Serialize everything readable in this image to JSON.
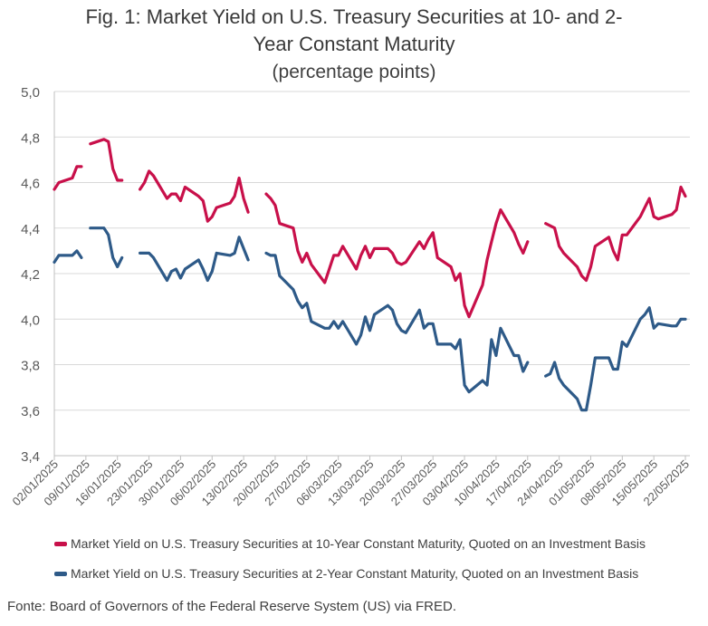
{
  "title": {
    "line1": "Fig. 1: Market Yield on U.S. Treasury Securities at 10- and 2-",
    "line2": "Year Constant Maturity",
    "subtitle": "(percentage points)"
  },
  "legend": [
    {
      "label": "Market Yield on U.S. Treasury Securities at 10-Year Constant Maturity, Quoted on an Investment Basis",
      "color": "#c8104a"
    },
    {
      "label": "Market Yield on U.S. Treasury Securities at 2-Year Constant Maturity, Quoted on an Investment Basis",
      "color": "#2e5a88"
    }
  ],
  "source": "Fonte: Board of Governors of the Federal Reserve System (US) via FRED.",
  "chart_data": {
    "type": "line",
    "title": "Fig. 1: Market Yield on U.S. Treasury Securities at 10- and 2-Year Constant Maturity",
    "subtitle": "(percentage points)",
    "ylim": [
      3.4,
      5.0
    ],
    "yticks": [
      "3,4",
      "3,6",
      "3,8",
      "4,0",
      "4,2",
      "4,4",
      "4,6",
      "4,8",
      "5,0"
    ],
    "ytick_values": [
      3.4,
      3.6,
      3.8,
      4.0,
      4.2,
      4.4,
      4.6,
      4.8,
      5.0
    ],
    "xtick_labels": [
      "02/01/2025",
      "09/01/2025",
      "16/01/2025",
      "23/01/2025",
      "30/01/2025",
      "06/02/2025",
      "13/02/2025",
      "20/02/2025",
      "27/02/2025",
      "06/03/2025",
      "13/03/2025",
      "20/03/2025",
      "27/03/2025",
      "03/04/2025",
      "10/04/2025",
      "17/04/2025",
      "24/04/2025",
      "01/05/2025",
      "08/05/2025",
      "15/05/2025",
      "22/05/2025"
    ],
    "x_start": "2025-01-02",
    "x_end": "2025-05-23",
    "grid": "horizontal",
    "series": [
      {
        "name": "Market Yield on U.S. Treasury Securities at 10-Year Constant Maturity, Quoted on an Investment Basis",
        "color": "#c8104a",
        "points": [
          [
            "2025-01-02",
            4.57
          ],
          [
            "2025-01-03",
            4.6
          ],
          [
            "2025-01-06",
            4.62
          ],
          [
            "2025-01-07",
            4.67
          ],
          [
            "2025-01-08",
            4.67
          ],
          [
            "2025-01-09",
            null
          ],
          [
            "2025-01-10",
            4.77
          ],
          [
            "2025-01-13",
            4.79
          ],
          [
            "2025-01-14",
            4.78
          ],
          [
            "2025-01-15",
            4.66
          ],
          [
            "2025-01-16",
            4.61
          ],
          [
            "2025-01-17",
            4.61
          ],
          [
            "2025-01-20",
            null
          ],
          [
            "2025-01-21",
            4.57
          ],
          [
            "2025-01-22",
            4.6
          ],
          [
            "2025-01-23",
            4.65
          ],
          [
            "2025-01-24",
            4.63
          ],
          [
            "2025-01-27",
            4.53
          ],
          [
            "2025-01-28",
            4.55
          ],
          [
            "2025-01-29",
            4.55
          ],
          [
            "2025-01-30",
            4.52
          ],
          [
            "2025-01-31",
            4.58
          ],
          [
            "2025-02-03",
            4.54
          ],
          [
            "2025-02-04",
            4.52
          ],
          [
            "2025-02-05",
            4.43
          ],
          [
            "2025-02-06",
            4.45
          ],
          [
            "2025-02-07",
            4.49
          ],
          [
            "2025-02-10",
            4.51
          ],
          [
            "2025-02-11",
            4.54
          ],
          [
            "2025-02-12",
            4.62
          ],
          [
            "2025-02-13",
            4.53
          ],
          [
            "2025-02-14",
            4.47
          ],
          [
            "2025-02-17",
            null
          ],
          [
            "2025-02-18",
            4.55
          ],
          [
            "2025-02-19",
            4.53
          ],
          [
            "2025-02-20",
            4.5
          ],
          [
            "2025-02-21",
            4.42
          ],
          [
            "2025-02-24",
            4.4
          ],
          [
            "2025-02-25",
            4.3
          ],
          [
            "2025-02-26",
            4.25
          ],
          [
            "2025-02-27",
            4.29
          ],
          [
            "2025-02-28",
            4.24
          ],
          [
            "2025-03-03",
            4.16
          ],
          [
            "2025-03-04",
            4.22
          ],
          [
            "2025-03-05",
            4.28
          ],
          [
            "2025-03-06",
            4.28
          ],
          [
            "2025-03-07",
            4.32
          ],
          [
            "2025-03-10",
            4.22
          ],
          [
            "2025-03-11",
            4.28
          ],
          [
            "2025-03-12",
            4.32
          ],
          [
            "2025-03-13",
            4.27
          ],
          [
            "2025-03-14",
            4.31
          ],
          [
            "2025-03-17",
            4.31
          ],
          [
            "2025-03-18",
            4.29
          ],
          [
            "2025-03-19",
            4.25
          ],
          [
            "2025-03-20",
            4.24
          ],
          [
            "2025-03-21",
            4.25
          ],
          [
            "2025-03-24",
            4.34
          ],
          [
            "2025-03-25",
            4.31
          ],
          [
            "2025-03-26",
            4.35
          ],
          [
            "2025-03-27",
            4.38
          ],
          [
            "2025-03-28",
            4.27
          ],
          [
            "2025-03-31",
            4.23
          ],
          [
            "2025-04-01",
            4.17
          ],
          [
            "2025-04-02",
            4.2
          ],
          [
            "2025-04-03",
            4.06
          ],
          [
            "2025-04-04",
            4.01
          ],
          [
            "2025-04-07",
            4.15
          ],
          [
            "2025-04-08",
            4.26
          ],
          [
            "2025-04-09",
            4.34
          ],
          [
            "2025-04-10",
            4.42
          ],
          [
            "2025-04-11",
            4.48
          ],
          [
            "2025-04-14",
            4.38
          ],
          [
            "2025-04-15",
            4.33
          ],
          [
            "2025-04-16",
            4.29
          ],
          [
            "2025-04-17",
            4.34
          ],
          [
            "2025-04-18",
            null
          ],
          [
            "2025-04-21",
            4.42
          ],
          [
            "2025-04-22",
            4.41
          ],
          [
            "2025-04-23",
            4.4
          ],
          [
            "2025-04-24",
            4.32
          ],
          [
            "2025-04-25",
            4.29
          ],
          [
            "2025-04-28",
            4.23
          ],
          [
            "2025-04-29",
            4.19
          ],
          [
            "2025-04-30",
            4.17
          ],
          [
            "2025-05-01",
            4.23
          ],
          [
            "2025-05-02",
            4.32
          ],
          [
            "2025-05-05",
            4.36
          ],
          [
            "2025-05-06",
            4.3
          ],
          [
            "2025-05-07",
            4.26
          ],
          [
            "2025-05-08",
            4.37
          ],
          [
            "2025-05-09",
            4.37
          ],
          [
            "2025-05-12",
            4.45
          ],
          [
            "2025-05-13",
            4.49
          ],
          [
            "2025-05-14",
            4.53
          ],
          [
            "2025-05-15",
            4.45
          ],
          [
            "2025-05-16",
            4.44
          ],
          [
            "2025-05-19",
            4.46
          ],
          [
            "2025-05-20",
            4.48
          ],
          [
            "2025-05-21",
            4.58
          ],
          [
            "2025-05-22",
            4.54
          ]
        ]
      },
      {
        "name": "Market Yield on U.S. Treasury Securities at 2-Year Constant Maturity, Quoted on an Investment Basis",
        "color": "#2e5a88",
        "points": [
          [
            "2025-01-02",
            4.25
          ],
          [
            "2025-01-03",
            4.28
          ],
          [
            "2025-01-06",
            4.28
          ],
          [
            "2025-01-07",
            4.3
          ],
          [
            "2025-01-08",
            4.27
          ],
          [
            "2025-01-09",
            null
          ],
          [
            "2025-01-10",
            4.4
          ],
          [
            "2025-01-13",
            4.4
          ],
          [
            "2025-01-14",
            4.37
          ],
          [
            "2025-01-15",
            4.27
          ],
          [
            "2025-01-16",
            4.23
          ],
          [
            "2025-01-17",
            4.27
          ],
          [
            "2025-01-20",
            null
          ],
          [
            "2025-01-21",
            4.29
          ],
          [
            "2025-01-22",
            4.29
          ],
          [
            "2025-01-23",
            4.29
          ],
          [
            "2025-01-24",
            4.27
          ],
          [
            "2025-01-27",
            4.17
          ],
          [
            "2025-01-28",
            4.21
          ],
          [
            "2025-01-29",
            4.22
          ],
          [
            "2025-01-30",
            4.18
          ],
          [
            "2025-01-31",
            4.22
          ],
          [
            "2025-02-03",
            4.26
          ],
          [
            "2025-02-04",
            4.22
          ],
          [
            "2025-02-05",
            4.17
          ],
          [
            "2025-02-06",
            4.21
          ],
          [
            "2025-02-07",
            4.29
          ],
          [
            "2025-02-10",
            4.28
          ],
          [
            "2025-02-11",
            4.29
          ],
          [
            "2025-02-12",
            4.36
          ],
          [
            "2025-02-13",
            4.31
          ],
          [
            "2025-02-14",
            4.26
          ],
          [
            "2025-02-17",
            null
          ],
          [
            "2025-02-18",
            4.29
          ],
          [
            "2025-02-19",
            4.28
          ],
          [
            "2025-02-20",
            4.28
          ],
          [
            "2025-02-21",
            4.19
          ],
          [
            "2025-02-24",
            4.13
          ],
          [
            "2025-02-25",
            4.08
          ],
          [
            "2025-02-26",
            4.05
          ],
          [
            "2025-02-27",
            4.07
          ],
          [
            "2025-02-28",
            3.99
          ],
          [
            "2025-03-03",
            3.96
          ],
          [
            "2025-03-04",
            3.96
          ],
          [
            "2025-03-05",
            3.99
          ],
          [
            "2025-03-06",
            3.96
          ],
          [
            "2025-03-07",
            3.99
          ],
          [
            "2025-03-10",
            3.89
          ],
          [
            "2025-03-11",
            3.93
          ],
          [
            "2025-03-12",
            4.01
          ],
          [
            "2025-03-13",
            3.95
          ],
          [
            "2025-03-14",
            4.02
          ],
          [
            "2025-03-17",
            4.06
          ],
          [
            "2025-03-18",
            4.04
          ],
          [
            "2025-03-19",
            3.98
          ],
          [
            "2025-03-20",
            3.95
          ],
          [
            "2025-03-21",
            3.94
          ],
          [
            "2025-03-24",
            4.04
          ],
          [
            "2025-03-25",
            3.96
          ],
          [
            "2025-03-26",
            3.98
          ],
          [
            "2025-03-27",
            3.98
          ],
          [
            "2025-03-28",
            3.89
          ],
          [
            "2025-03-31",
            3.89
          ],
          [
            "2025-04-01",
            3.87
          ],
          [
            "2025-04-02",
            3.91
          ],
          [
            "2025-04-03",
            3.71
          ],
          [
            "2025-04-04",
            3.68
          ],
          [
            "2025-04-07",
            3.73
          ],
          [
            "2025-04-08",
            3.71
          ],
          [
            "2025-04-09",
            3.91
          ],
          [
            "2025-04-10",
            3.84
          ],
          [
            "2025-04-11",
            3.96
          ],
          [
            "2025-04-14",
            3.84
          ],
          [
            "2025-04-15",
            3.84
          ],
          [
            "2025-04-16",
            3.77
          ],
          [
            "2025-04-17",
            3.81
          ],
          [
            "2025-04-18",
            null
          ],
          [
            "2025-04-21",
            3.75
          ],
          [
            "2025-04-22",
            3.76
          ],
          [
            "2025-04-23",
            3.81
          ],
          [
            "2025-04-24",
            3.74
          ],
          [
            "2025-04-25",
            3.71
          ],
          [
            "2025-04-28",
            3.65
          ],
          [
            "2025-04-29",
            3.6
          ],
          [
            "2025-04-30",
            3.6
          ],
          [
            "2025-05-01",
            3.71
          ],
          [
            "2025-05-02",
            3.83
          ],
          [
            "2025-05-05",
            3.83
          ],
          [
            "2025-05-06",
            3.78
          ],
          [
            "2025-05-07",
            3.78
          ],
          [
            "2025-05-08",
            3.9
          ],
          [
            "2025-05-09",
            3.88
          ],
          [
            "2025-05-12",
            4.0
          ],
          [
            "2025-05-13",
            4.02
          ],
          [
            "2025-05-14",
            4.05
          ],
          [
            "2025-05-15",
            3.96
          ],
          [
            "2025-05-16",
            3.98
          ],
          [
            "2025-05-19",
            3.97
          ],
          [
            "2025-05-20",
            3.97
          ],
          [
            "2025-05-21",
            4.0
          ],
          [
            "2025-05-22",
            4.0
          ]
        ]
      }
    ]
  }
}
